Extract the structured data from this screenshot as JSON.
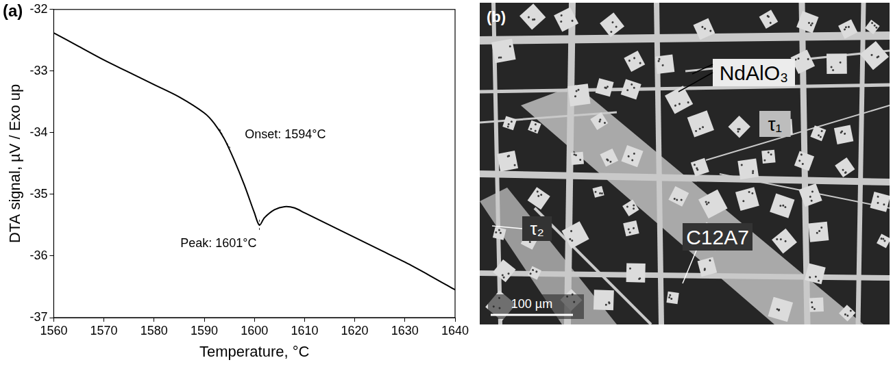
{
  "chart_data": {
    "type": "line",
    "panel": "(a)",
    "x_label": "Temperature, °C",
    "y_label": "DTA signal, µV / Exo up",
    "x": [
      1560,
      1565,
      1570,
      1575,
      1580,
      1585,
      1590,
      1592,
      1594,
      1596,
      1598,
      1600,
      1601,
      1602,
      1604,
      1606,
      1608,
      1610,
      1615,
      1620,
      1625,
      1630,
      1635,
      1640
    ],
    "values": [
      -32.38,
      -32.6,
      -32.82,
      -33.02,
      -33.22,
      -33.42,
      -33.68,
      -33.85,
      -34.1,
      -34.45,
      -34.85,
      -35.3,
      -35.5,
      -35.38,
      -35.25,
      -35.2,
      -35.22,
      -35.3,
      -35.5,
      -35.7,
      -35.9,
      -36.1,
      -36.32,
      -36.55
    ],
    "color": "#000000",
    "xlim": [
      1560,
      1640
    ],
    "xticks": [
      1560,
      1570,
      1580,
      1590,
      1600,
      1610,
      1620,
      1630,
      1640
    ],
    "ylim": [
      -37,
      -32
    ],
    "yticks": [
      -37,
      -36,
      -35,
      -34,
      -33,
      -32
    ],
    "grid": false,
    "annotations": [
      {
        "text": "Onset: 1594°C",
        "x": 1594,
        "y": -34.1
      },
      {
        "text": "Peak: 1601°C",
        "x": 1601,
        "y": -35.5
      }
    ]
  },
  "micrograph": {
    "panel": "(b)",
    "labels": [
      "NdAlO₃",
      "τ₁",
      "τ₂",
      "C12A7"
    ],
    "scale_bar": "100 µm"
  }
}
